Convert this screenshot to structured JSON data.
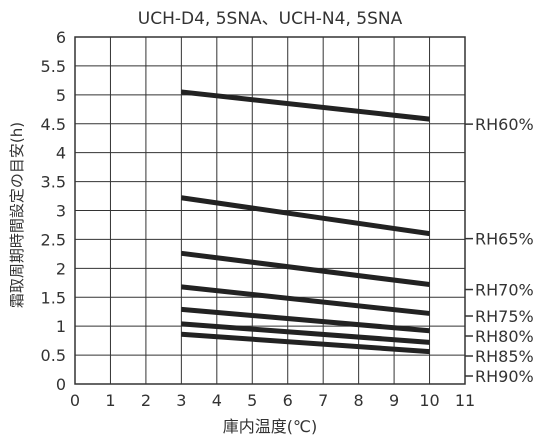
{
  "chart_data": {
    "type": "line",
    "title": "UCH-D4, 5SNA、UCH-N4, 5SNA",
    "xlabel": "庫内温度(℃)",
    "ylabel": "霜取周期時間設定の目安(h)",
    "xlim": [
      0,
      11
    ],
    "ylim": [
      0,
      6
    ],
    "x_ticks": [
      "0",
      "1",
      "2",
      "3",
      "4",
      "5",
      "6",
      "7",
      "8",
      "9",
      "10",
      "11"
    ],
    "y_ticks": [
      "0",
      "0.5",
      "1",
      "1.5",
      "2",
      "2.5",
      "3",
      "3.5",
      "4",
      "4.5",
      "5",
      "5.5",
      "6"
    ],
    "grid": true,
    "series": [
      {
        "name": "RH60%",
        "x": [
          3,
          10
        ],
        "y": [
          5.05,
          4.58
        ]
      },
      {
        "name": "RH65%",
        "x": [
          3,
          10
        ],
        "y": [
          3.22,
          2.6
        ]
      },
      {
        "name": "RH70%",
        "x": [
          3,
          10
        ],
        "y": [
          2.26,
          1.72
        ]
      },
      {
        "name": "RH75%",
        "x": [
          3,
          10
        ],
        "y": [
          1.68,
          1.22
        ]
      },
      {
        "name": "RH80%",
        "x": [
          3,
          10
        ],
        "y": [
          1.29,
          0.92
        ]
      },
      {
        "name": "RH85%",
        "x": [
          3,
          10
        ],
        "y": [
          1.04,
          0.72
        ]
      },
      {
        "name": "RH90%",
        "x": [
          3,
          10
        ],
        "y": [
          0.86,
          0.56
        ]
      }
    ]
  }
}
